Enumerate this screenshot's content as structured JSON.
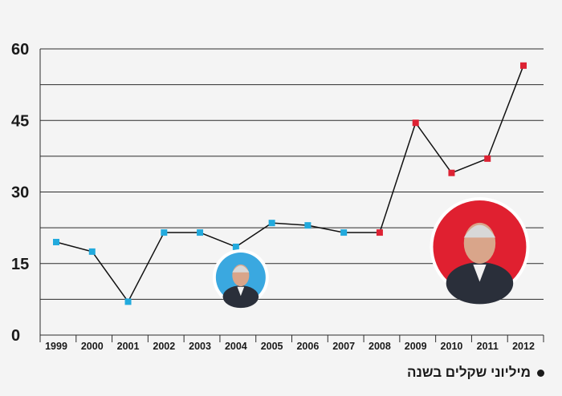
{
  "chart_data": {
    "type": "line",
    "title": "",
    "xlabel": "",
    "ylabel": "",
    "x": [
      "1999",
      "2000",
      "2001",
      "2002",
      "2003",
      "2004",
      "2005",
      "2006",
      "2007",
      "2008",
      "2009",
      "2010",
      "2011",
      "2012"
    ],
    "series": [
      {
        "values": [
          19.5,
          17.5,
          7,
          21.5,
          21.5,
          18.5,
          23.5,
          23,
          21.5,
          21.5,
          44.5,
          34,
          37,
          56.5
        ],
        "point_colors": [
          "#22aadd",
          "#22aadd",
          "#22aadd",
          "#22aadd",
          "#22aadd",
          "#22aadd",
          "#22aadd",
          "#22aadd",
          "#22aadd",
          "#dd2233",
          "#dd2233",
          "#dd2233",
          "#dd2233",
          "#dd2233"
        ]
      }
    ],
    "yticks": [
      "0",
      "15",
      "30",
      "45",
      "60"
    ],
    "ylim": [
      0,
      60
    ],
    "grid": true,
    "legend": {
      "label": "מיליוני שקלים בשנה",
      "placement": "bottom-right"
    }
  },
  "portraits": [
    {
      "name": "portrait-katsav",
      "ring": "#3aa8e0",
      "at_year": "2004"
    },
    {
      "name": "portrait-peres",
      "ring": "#e02030",
      "at_year": "2010"
    }
  ]
}
